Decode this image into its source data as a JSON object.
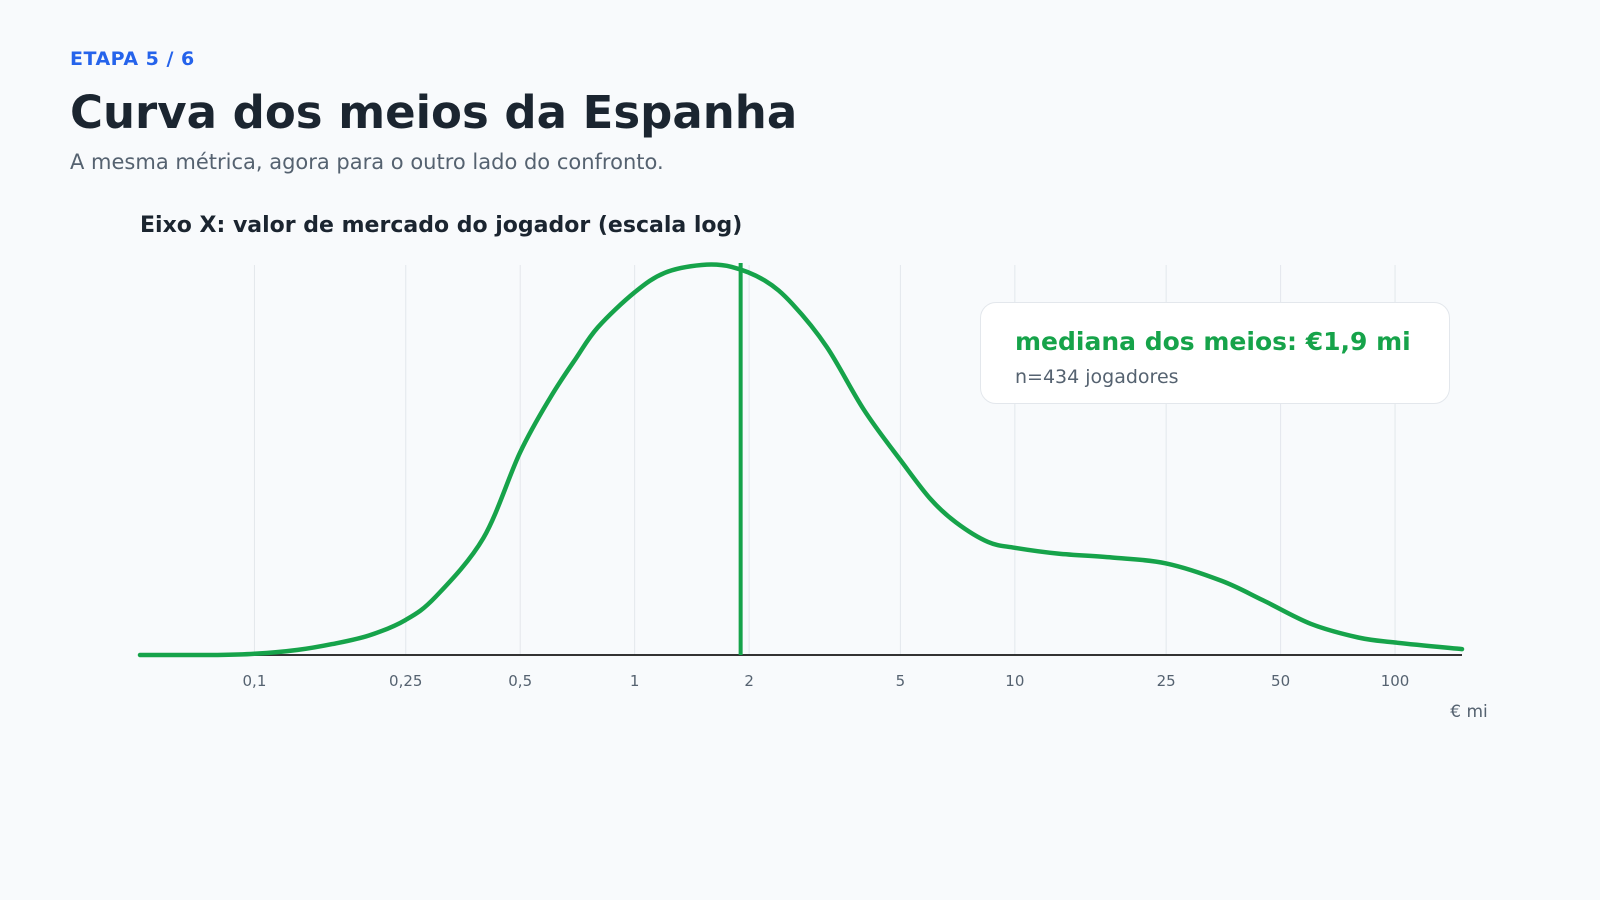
{
  "header": {
    "step": "ETAPA 5 / 6",
    "title": "Curva dos meios da Espanha",
    "subtitle": "A mesma métrica, agora para o outro lado do confronto."
  },
  "chart_title": "Eixo X: valor de mercado do jogador (escala log)",
  "callout": {
    "main": "mediana dos meios: €1,9 mi",
    "sub": "n=434 jogadores"
  },
  "colors": {
    "accent": "#2563eb",
    "curve": "#16a34a",
    "text": "#1b2530",
    "muted": "#556270",
    "grid": "#e3e7ec",
    "axis": "#333333"
  },
  "chart_data": {
    "type": "area",
    "x_scale": "log",
    "x_unit_label": "€ mi",
    "xlim": [
      0.05,
      150
    ],
    "ylim": [
      0,
      1
    ],
    "grid": true,
    "y_axis_visible": false,
    "x_ticks": [
      {
        "value": 0.1,
        "label": "0,1"
      },
      {
        "value": 0.25,
        "label": "0,25"
      },
      {
        "value": 0.5,
        "label": "0,5"
      },
      {
        "value": 1,
        "label": "1"
      },
      {
        "value": 2,
        "label": "2"
      },
      {
        "value": 5,
        "label": "5"
      },
      {
        "value": 10,
        "label": "10"
      },
      {
        "value": 25,
        "label": "25"
      },
      {
        "value": 50,
        "label": "50"
      },
      {
        "value": 100,
        "label": "100"
      }
    ],
    "median_line": {
      "x": 1.9
    },
    "series": [
      {
        "points": [
          [
            0.05,
            0.0
          ],
          [
            0.08,
            0.0
          ],
          [
            0.1,
            0.003
          ],
          [
            0.13,
            0.013
          ],
          [
            0.16,
            0.028
          ],
          [
            0.2,
            0.05
          ],
          [
            0.25,
            0.09
          ],
          [
            0.3,
            0.15
          ],
          [
            0.4,
            0.3
          ],
          [
            0.5,
            0.52
          ],
          [
            0.6,
            0.66
          ],
          [
            0.7,
            0.76
          ],
          [
            0.8,
            0.84
          ],
          [
            1.0,
            0.93
          ],
          [
            1.2,
            0.98
          ],
          [
            1.5,
            1.0
          ],
          [
            1.8,
            0.995
          ],
          [
            2.2,
            0.96
          ],
          [
            2.6,
            0.9
          ],
          [
            3.2,
            0.79
          ],
          [
            4.0,
            0.63
          ],
          [
            5.0,
            0.5
          ],
          [
            6.0,
            0.4
          ],
          [
            7.0,
            0.34
          ],
          [
            8.5,
            0.29
          ],
          [
            10,
            0.275
          ],
          [
            13,
            0.26
          ],
          [
            18,
            0.25
          ],
          [
            25,
            0.235
          ],
          [
            35,
            0.19
          ],
          [
            45,
            0.14
          ],
          [
            60,
            0.08
          ],
          [
            80,
            0.045
          ],
          [
            100,
            0.032
          ],
          [
            150,
            0.015
          ]
        ]
      }
    ]
  }
}
